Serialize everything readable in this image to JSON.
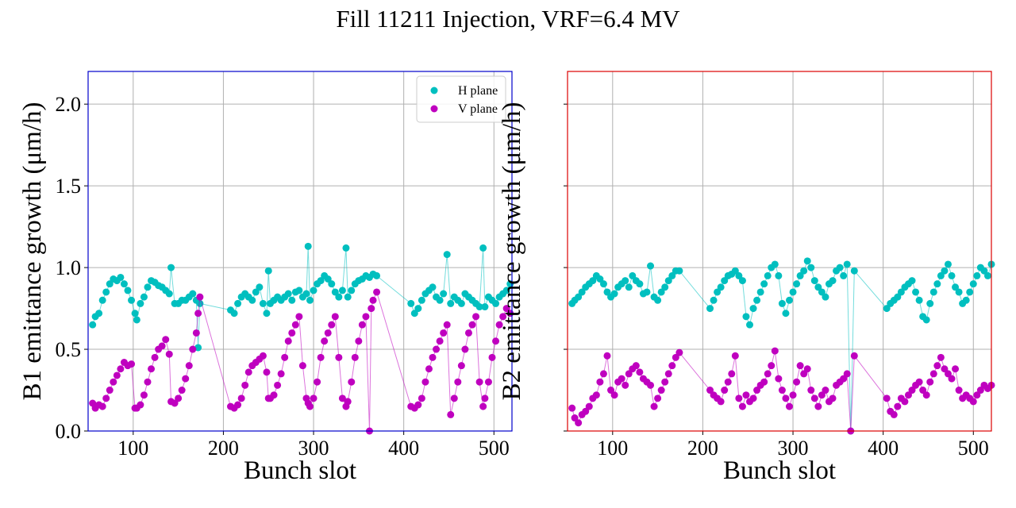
{
  "chart_data": {
    "type": "scatter",
    "title": "Fill 11211 Injection, VRF=6.4 MV",
    "colors": {
      "H plane": "#00bfbf",
      "V plane": "#bf00bf",
      "B1 frame": "#0000cc",
      "B2 frame": "#dd0000",
      "grid": "#b0b0b0"
    },
    "legend": {
      "entries": [
        "H plane",
        "V plane"
      ],
      "placement": "top-right",
      "panel": "B1"
    },
    "panels": [
      {
        "name": "B1",
        "xlabel": "Bunch slot",
        "ylabel": "B1 emittance growth (μm/h)",
        "xlim": [
          50,
          520
        ],
        "ylim": [
          0,
          2.2
        ],
        "xticks": [
          100,
          200,
          300,
          400,
          500
        ],
        "yticks": [
          0.0,
          0.5,
          1.0,
          1.5,
          2.0
        ],
        "ytick_labels": [
          "0.0",
          "0.5",
          "1.0",
          "1.5",
          "2.0"
        ],
        "series": [
          {
            "name": "H plane",
            "x": [
              55,
              58,
              62,
              66,
              70,
              74,
              78,
              82,
              86,
              90,
              94,
              98,
              102,
              104,
              108,
              112,
              116,
              120,
              124,
              128,
              132,
              136,
              140,
              142,
              146,
              150,
              154,
              158,
              162,
              166,
              170,
              172,
              174,
              208,
              212,
              216,
              220,
              224,
              228,
              232,
              236,
              240,
              244,
              248,
              250,
              252,
              256,
              260,
              264,
              268,
              272,
              276,
              280,
              284,
              288,
              292,
              294,
              296,
              300,
              304,
              308,
              312,
              316,
              320,
              324,
              328,
              332,
              336,
              338,
              342,
              346,
              350,
              354,
              358,
              362,
              366,
              370,
              408,
              412,
              416,
              420,
              424,
              428,
              432,
              436,
              440,
              444,
              448,
              452,
              456,
              460,
              464,
              468,
              472,
              476,
              480,
              484,
              488,
              490,
              494,
              498,
              502,
              506,
              510,
              514,
              518
            ],
            "y": [
              0.65,
              0.7,
              0.72,
              0.8,
              0.85,
              0.9,
              0.93,
              0.92,
              0.94,
              0.9,
              0.86,
              0.8,
              0.72,
              0.68,
              0.78,
              0.82,
              0.88,
              0.92,
              0.91,
              0.89,
              0.88,
              0.86,
              0.84,
              1.0,
              0.78,
              0.78,
              0.8,
              0.8,
              0.82,
              0.84,
              0.8,
              0.51,
              0.78,
              0.74,
              0.72,
              0.78,
              0.82,
              0.84,
              0.82,
              0.8,
              0.85,
              0.88,
              0.78,
              0.72,
              0.98,
              0.78,
              0.8,
              0.82,
              0.8,
              0.82,
              0.84,
              0.8,
              0.85,
              0.86,
              0.82,
              0.84,
              1.13,
              0.8,
              0.86,
              0.9,
              0.92,
              0.95,
              0.93,
              0.9,
              0.85,
              0.82,
              0.86,
              1.12,
              0.82,
              0.86,
              0.9,
              0.92,
              0.93,
              0.95,
              0.94,
              0.96,
              0.95,
              0.78,
              0.72,
              0.75,
              0.8,
              0.84,
              0.86,
              0.88,
              0.82,
              0.8,
              0.84,
              1.08,
              0.78,
              0.82,
              0.8,
              0.78,
              0.84,
              0.82,
              0.8,
              0.78,
              0.76,
              1.12,
              0.76,
              0.82,
              0.8,
              0.78,
              0.82,
              0.84,
              0.86,
              0.9
            ]
          },
          {
            "name": "V plane",
            "x": [
              55,
              58,
              62,
              66,
              70,
              74,
              78,
              82,
              86,
              90,
              94,
              98,
              102,
              104,
              108,
              112,
              116,
              120,
              124,
              128,
              132,
              136,
              140,
              142,
              146,
              150,
              154,
              158,
              162,
              166,
              170,
              172,
              174,
              208,
              212,
              216,
              220,
              224,
              228,
              232,
              236,
              240,
              244,
              248,
              250,
              252,
              256,
              260,
              264,
              268,
              272,
              276,
              280,
              284,
              288,
              292,
              294,
              296,
              300,
              304,
              308,
              312,
              316,
              320,
              324,
              328,
              332,
              336,
              338,
              342,
              346,
              350,
              354,
              358,
              362,
              364,
              366,
              370,
              408,
              412,
              416,
              420,
              424,
              428,
              432,
              436,
              440,
              444,
              448,
              452,
              456,
              460,
              464,
              468,
              472,
              476,
              480,
              484,
              488,
              490,
              494,
              498,
              502,
              506,
              510,
              514,
              518
            ],
            "y": [
              0.17,
              0.14,
              0.16,
              0.15,
              0.2,
              0.25,
              0.3,
              0.34,
              0.38,
              0.42,
              0.4,
              0.41,
              0.14,
              0.14,
              0.16,
              0.22,
              0.3,
              0.38,
              0.45,
              0.5,
              0.52,
              0.56,
              0.47,
              0.18,
              0.17,
              0.2,
              0.25,
              0.32,
              0.4,
              0.5,
              0.6,
              0.72,
              0.82,
              0.15,
              0.14,
              0.16,
              0.2,
              0.28,
              0.36,
              0.4,
              0.42,
              0.44,
              0.46,
              0.36,
              0.2,
              0.2,
              0.22,
              0.28,
              0.35,
              0.45,
              0.55,
              0.6,
              0.65,
              0.7,
              0.4,
              0.2,
              0.17,
              0.15,
              0.2,
              0.3,
              0.45,
              0.55,
              0.6,
              0.65,
              0.7,
              0.45,
              0.2,
              0.15,
              0.18,
              0.3,
              0.45,
              0.55,
              0.65,
              0.7,
              0.0,
              0.75,
              0.8,
              0.85,
              0.15,
              0.14,
              0.16,
              0.2,
              0.3,
              0.38,
              0.45,
              0.5,
              0.55,
              0.6,
              0.65,
              0.1,
              0.2,
              0.3,
              0.4,
              0.5,
              0.6,
              0.65,
              0.7,
              0.3,
              0.15,
              0.2,
              0.3,
              0.45,
              0.55,
              0.65,
              0.7,
              0.75,
              0.72
            ]
          }
        ]
      },
      {
        "name": "B2",
        "xlabel": "Bunch slot",
        "ylabel": "B2 emittance growth (μm/h)",
        "xlim": [
          50,
          520
        ],
        "ylim": [
          0,
          2.2
        ],
        "xticks": [
          100,
          200,
          300,
          400,
          500
        ],
        "yticks": [
          0.0,
          0.5,
          1.0,
          1.5,
          2.0
        ],
        "ytick_labels": [
          "",
          "",
          "",
          "",
          ""
        ],
        "series": [
          {
            "name": "H plane",
            "x": [
              55,
              58,
              62,
              66,
              70,
              74,
              78,
              82,
              86,
              90,
              94,
              98,
              102,
              106,
              110,
              114,
              118,
              122,
              126,
              130,
              134,
              138,
              142,
              146,
              150,
              154,
              158,
              162,
              166,
              170,
              174,
              208,
              212,
              216,
              220,
              224,
              228,
              232,
              236,
              240,
              244,
              248,
              252,
              256,
              260,
              264,
              268,
              272,
              276,
              280,
              284,
              288,
              292,
              296,
              300,
              304,
              308,
              312,
              316,
              320,
              324,
              328,
              332,
              336,
              340,
              344,
              348,
              352,
              356,
              360,
              364,
              368,
              404,
              408,
              412,
              416,
              420,
              424,
              428,
              432,
              436,
              440,
              444,
              448,
              452,
              456,
              460,
              464,
              468,
              472,
              476,
              480,
              484,
              488,
              492,
              496,
              500,
              504,
              508,
              512,
              516,
              520
            ],
            "y": [
              0.78,
              0.8,
              0.82,
              0.85,
              0.88,
              0.9,
              0.92,
              0.95,
              0.93,
              0.9,
              0.85,
              0.82,
              0.84,
              0.88,
              0.9,
              0.92,
              0.88,
              0.95,
              0.92,
              0.9,
              0.84,
              0.85,
              1.01,
              0.82,
              0.8,
              0.85,
              0.88,
              0.92,
              0.95,
              0.98,
              0.98,
              0.75,
              0.8,
              0.85,
              0.88,
              0.92,
              0.95,
              0.96,
              0.98,
              0.95,
              0.92,
              0.7,
              0.65,
              0.75,
              0.8,
              0.85,
              0.9,
              0.95,
              1.0,
              1.02,
              0.95,
              0.78,
              0.72,
              0.8,
              0.85,
              0.9,
              0.95,
              0.98,
              1.04,
              1.0,
              0.92,
              0.88,
              0.85,
              0.82,
              0.9,
              0.92,
              0.98,
              1.0,
              0.95,
              1.02,
              0.0,
              0.98,
              0.75,
              0.78,
              0.8,
              0.82,
              0.85,
              0.88,
              0.9,
              0.92,
              0.85,
              0.8,
              0.7,
              0.68,
              0.78,
              0.85,
              0.9,
              0.95,
              0.98,
              1.02,
              0.95,
              0.88,
              0.85,
              0.78,
              0.8,
              0.85,
              0.9,
              0.95,
              1.0,
              0.98,
              0.95,
              1.02
            ]
          },
          {
            "name": "V plane",
            "x": [
              55,
              58,
              62,
              66,
              70,
              74,
              78,
              82,
              86,
              90,
              94,
              98,
              102,
              106,
              110,
              114,
              118,
              122,
              126,
              130,
              134,
              138,
              142,
              146,
              150,
              154,
              158,
              162,
              166,
              170,
              174,
              208,
              212,
              216,
              220,
              224,
              228,
              232,
              236,
              240,
              244,
              248,
              252,
              256,
              260,
              264,
              268,
              272,
              276,
              280,
              284,
              288,
              292,
              296,
              300,
              304,
              308,
              312,
              316,
              320,
              324,
              328,
              332,
              336,
              340,
              344,
              348,
              352,
              356,
              360,
              364,
              368,
              404,
              408,
              412,
              416,
              420,
              424,
              428,
              432,
              436,
              440,
              444,
              448,
              452,
              456,
              460,
              464,
              468,
              472,
              476,
              480,
              484,
              488,
              492,
              496,
              500,
              504,
              508,
              512,
              516,
              520
            ],
            "y": [
              0.14,
              0.08,
              0.05,
              0.1,
              0.12,
              0.15,
              0.2,
              0.22,
              0.3,
              0.35,
              0.46,
              0.25,
              0.22,
              0.3,
              0.32,
              0.28,
              0.35,
              0.38,
              0.4,
              0.36,
              0.32,
              0.3,
              0.28,
              0.15,
              0.2,
              0.25,
              0.3,
              0.35,
              0.4,
              0.45,
              0.48,
              0.25,
              0.22,
              0.2,
              0.18,
              0.25,
              0.3,
              0.35,
              0.46,
              0.2,
              0.15,
              0.22,
              0.18,
              0.2,
              0.25,
              0.28,
              0.3,
              0.35,
              0.4,
              0.49,
              0.32,
              0.25,
              0.2,
              0.15,
              0.22,
              0.3,
              0.4,
              0.35,
              0.38,
              0.25,
              0.2,
              0.15,
              0.22,
              0.25,
              0.18,
              0.2,
              0.28,
              0.3,
              0.32,
              0.35,
              0.0,
              0.46,
              0.2,
              0.12,
              0.1,
              0.15,
              0.2,
              0.18,
              0.22,
              0.25,
              0.28,
              0.3,
              0.25,
              0.22,
              0.3,
              0.35,
              0.4,
              0.45,
              0.38,
              0.35,
              0.32,
              0.38,
              0.25,
              0.2,
              0.22,
              0.2,
              0.18,
              0.22,
              0.25,
              0.28,
              0.26,
              0.28
            ]
          }
        ]
      }
    ]
  }
}
